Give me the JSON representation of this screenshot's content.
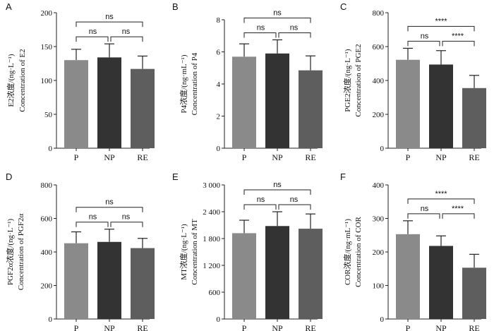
{
  "colors": {
    "P": "#8a8a8a",
    "NP": "#333333",
    "RE": "#5e5e5e"
  },
  "chart_data": [
    {
      "type": "bar",
      "panel": "A",
      "categories": [
        "P",
        "NP",
        "RE"
      ],
      "values": [
        130,
        134,
        117
      ],
      "errors": [
        16,
        20,
        19
      ],
      "ylabel_cn": "E2浓度/(ng·L⁻¹)",
      "ylabel_en": "Concentration of E2",
      "ylim": [
        0,
        200
      ],
      "yticks": [
        "0",
        "50",
        "100",
        "150",
        "200"
      ],
      "significance": [
        {
          "from": 0,
          "to": 1,
          "label": "ns"
        },
        {
          "from": 1,
          "to": 2,
          "label": "ns"
        },
        {
          "from": 0,
          "to": 2,
          "label": "ns"
        }
      ]
    },
    {
      "type": "bar",
      "panel": "B",
      "categories": [
        "P",
        "NP",
        "RE"
      ],
      "values": [
        5.7,
        5.9,
        4.85
      ],
      "errors": [
        0.8,
        0.85,
        0.9
      ],
      "ylabel_cn": "P4浓度/(ng·mL⁻¹)",
      "ylabel_en": "Concentration of P4",
      "ylim": [
        0,
        8
      ],
      "yticks": [
        "0",
        "2",
        "4",
        "6",
        "8"
      ],
      "significance": [
        {
          "from": 0,
          "to": 1,
          "label": "ns"
        },
        {
          "from": 1,
          "to": 2,
          "label": "ns"
        },
        {
          "from": 0,
          "to": 2,
          "label": "ns"
        }
      ]
    },
    {
      "type": "bar",
      "panel": "C",
      "categories": [
        "P",
        "NP",
        "RE"
      ],
      "values": [
        522,
        494,
        355
      ],
      "errors": [
        68,
        82,
        75
      ],
      "ylabel_cn": "PGE2浓度/(ng·L⁻¹)",
      "ylabel_en": "Concentration of PGE2",
      "ylim": [
        0,
        800
      ],
      "yticks": [
        "0",
        "200",
        "400",
        "600",
        "800"
      ],
      "significance": [
        {
          "from": 0,
          "to": 1,
          "label": "ns"
        },
        {
          "from": 1,
          "to": 2,
          "label": "****"
        },
        {
          "from": 0,
          "to": 2,
          "label": "****"
        }
      ]
    },
    {
      "type": "bar",
      "panel": "D",
      "categories": [
        "P",
        "NP",
        "RE"
      ],
      "values": [
        452,
        460,
        423
      ],
      "errors": [
        68,
        76,
        58
      ],
      "ylabel_cn": "PGF2α浓度/(ng·L⁻¹)",
      "ylabel_en": "Concentration of PGF2α",
      "ylim": [
        0,
        800
      ],
      "yticks": [
        "0",
        "200",
        "400",
        "600",
        "800"
      ],
      "significance": [
        {
          "from": 0,
          "to": 1,
          "label": "ns"
        },
        {
          "from": 1,
          "to": 2,
          "label": "ns"
        },
        {
          "from": 0,
          "to": 2,
          "label": "ns"
        }
      ]
    },
    {
      "type": "bar",
      "panel": "E",
      "categories": [
        "P",
        "NP",
        "RE"
      ],
      "values": [
        1920,
        2080,
        2020
      ],
      "errors": [
        290,
        320,
        330
      ],
      "ylabel_cn": "MT浓度/(ng·L⁻¹)",
      "ylabel_en": "Concentration of MT",
      "ylim": [
        0,
        3000
      ],
      "yticks": [
        "0",
        "600",
        "1 200",
        "1 800",
        "2 400",
        "3 000"
      ],
      "significance": [
        {
          "from": 0,
          "to": 1,
          "label": "ns"
        },
        {
          "from": 1,
          "to": 2,
          "label": "ns"
        },
        {
          "from": 0,
          "to": 2,
          "label": "ns"
        }
      ]
    },
    {
      "type": "bar",
      "panel": "F",
      "categories": [
        "P",
        "NP",
        "RE"
      ],
      "values": [
        253,
        218,
        153
      ],
      "errors": [
        40,
        30,
        40
      ],
      "ylabel_cn": "COR浓度/(ng·mL⁻¹)",
      "ylabel_en": "Concentration of COR",
      "ylim": [
        0,
        400
      ],
      "yticks": [
        "0",
        "100",
        "200",
        "300",
        "400"
      ],
      "significance": [
        {
          "from": 0,
          "to": 1,
          "label": "ns"
        },
        {
          "from": 1,
          "to": 2,
          "label": "****"
        },
        {
          "from": 0,
          "to": 2,
          "label": "****"
        }
      ]
    }
  ]
}
